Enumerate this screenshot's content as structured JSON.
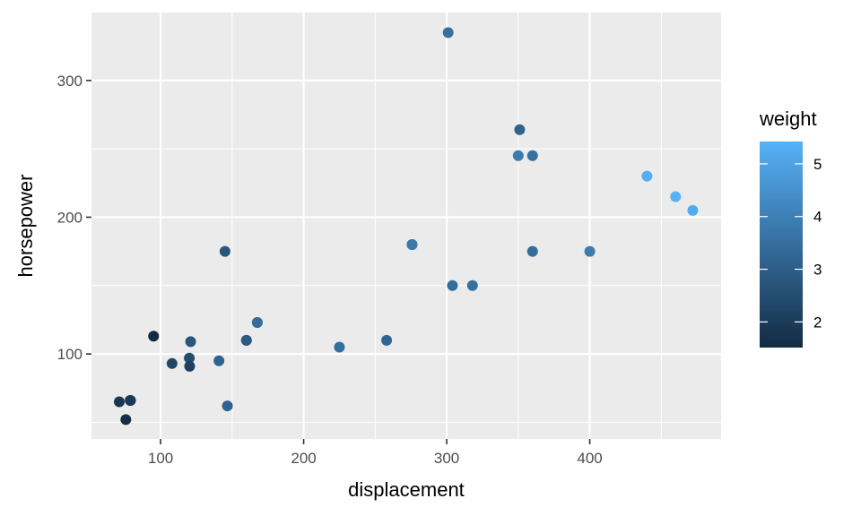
{
  "chart_data": {
    "type": "scatter",
    "xlabel": "displacement",
    "ylabel": "horsepower",
    "xlim": [
      51.69,
      491.79
    ],
    "ylim": [
      37.85,
      349.65
    ],
    "x_ticks": [
      100,
      200,
      300,
      400
    ],
    "y_ticks": [
      100,
      200,
      300
    ],
    "grid": true,
    "legend": {
      "title": "weight",
      "position": "right",
      "range": [
        1.513,
        5.424
      ],
      "ticks": [
        2,
        3,
        4,
        5
      ],
      "color_low": "#132B43",
      "color_high": "#56B1F7"
    },
    "points": [
      {
        "x": 160,
        "y": 110,
        "w": 2.62
      },
      {
        "x": 160,
        "y": 110,
        "w": 2.875
      },
      {
        "x": 108,
        "y": 93,
        "w": 2.32
      },
      {
        "x": 258,
        "y": 110,
        "w": 3.215
      },
      {
        "x": 360,
        "y": 175,
        "w": 3.44
      },
      {
        "x": 225,
        "y": 105,
        "w": 3.46
      },
      {
        "x": 360,
        "y": 245,
        "w": 3.57
      },
      {
        "x": 146.7,
        "y": 62,
        "w": 3.19
      },
      {
        "x": 140.8,
        "y": 95,
        "w": 3.15
      },
      {
        "x": 167.6,
        "y": 123,
        "w": 3.44
      },
      {
        "x": 167.6,
        "y": 123,
        "w": 3.44
      },
      {
        "x": 275.8,
        "y": 180,
        "w": 4.07
      },
      {
        "x": 275.8,
        "y": 180,
        "w": 3.73
      },
      {
        "x": 275.8,
        "y": 180,
        "w": 3.78
      },
      {
        "x": 472,
        "y": 205,
        "w": 5.25
      },
      {
        "x": 460,
        "y": 215,
        "w": 5.424
      },
      {
        "x": 440,
        "y": 230,
        "w": 5.345
      },
      {
        "x": 78.7,
        "y": 66,
        "w": 2.2
      },
      {
        "x": 75.7,
        "y": 52,
        "w": 1.615
      },
      {
        "x": 71.1,
        "y": 65,
        "w": 1.835
      },
      {
        "x": 120.1,
        "y": 97,
        "w": 2.465
      },
      {
        "x": 318,
        "y": 150,
        "w": 3.52
      },
      {
        "x": 304,
        "y": 150,
        "w": 3.435
      },
      {
        "x": 350,
        "y": 245,
        "w": 3.84
      },
      {
        "x": 400,
        "y": 175,
        "w": 3.845
      },
      {
        "x": 79,
        "y": 66,
        "w": 1.935
      },
      {
        "x": 120.3,
        "y": 91,
        "w": 2.14
      },
      {
        "x": 95.1,
        "y": 113,
        "w": 1.513
      },
      {
        "x": 351,
        "y": 264,
        "w": 3.17
      },
      {
        "x": 145,
        "y": 175,
        "w": 2.77
      },
      {
        "x": 301,
        "y": 335,
        "w": 3.57
      },
      {
        "x": 121,
        "y": 109,
        "w": 2.78
      }
    ]
  }
}
